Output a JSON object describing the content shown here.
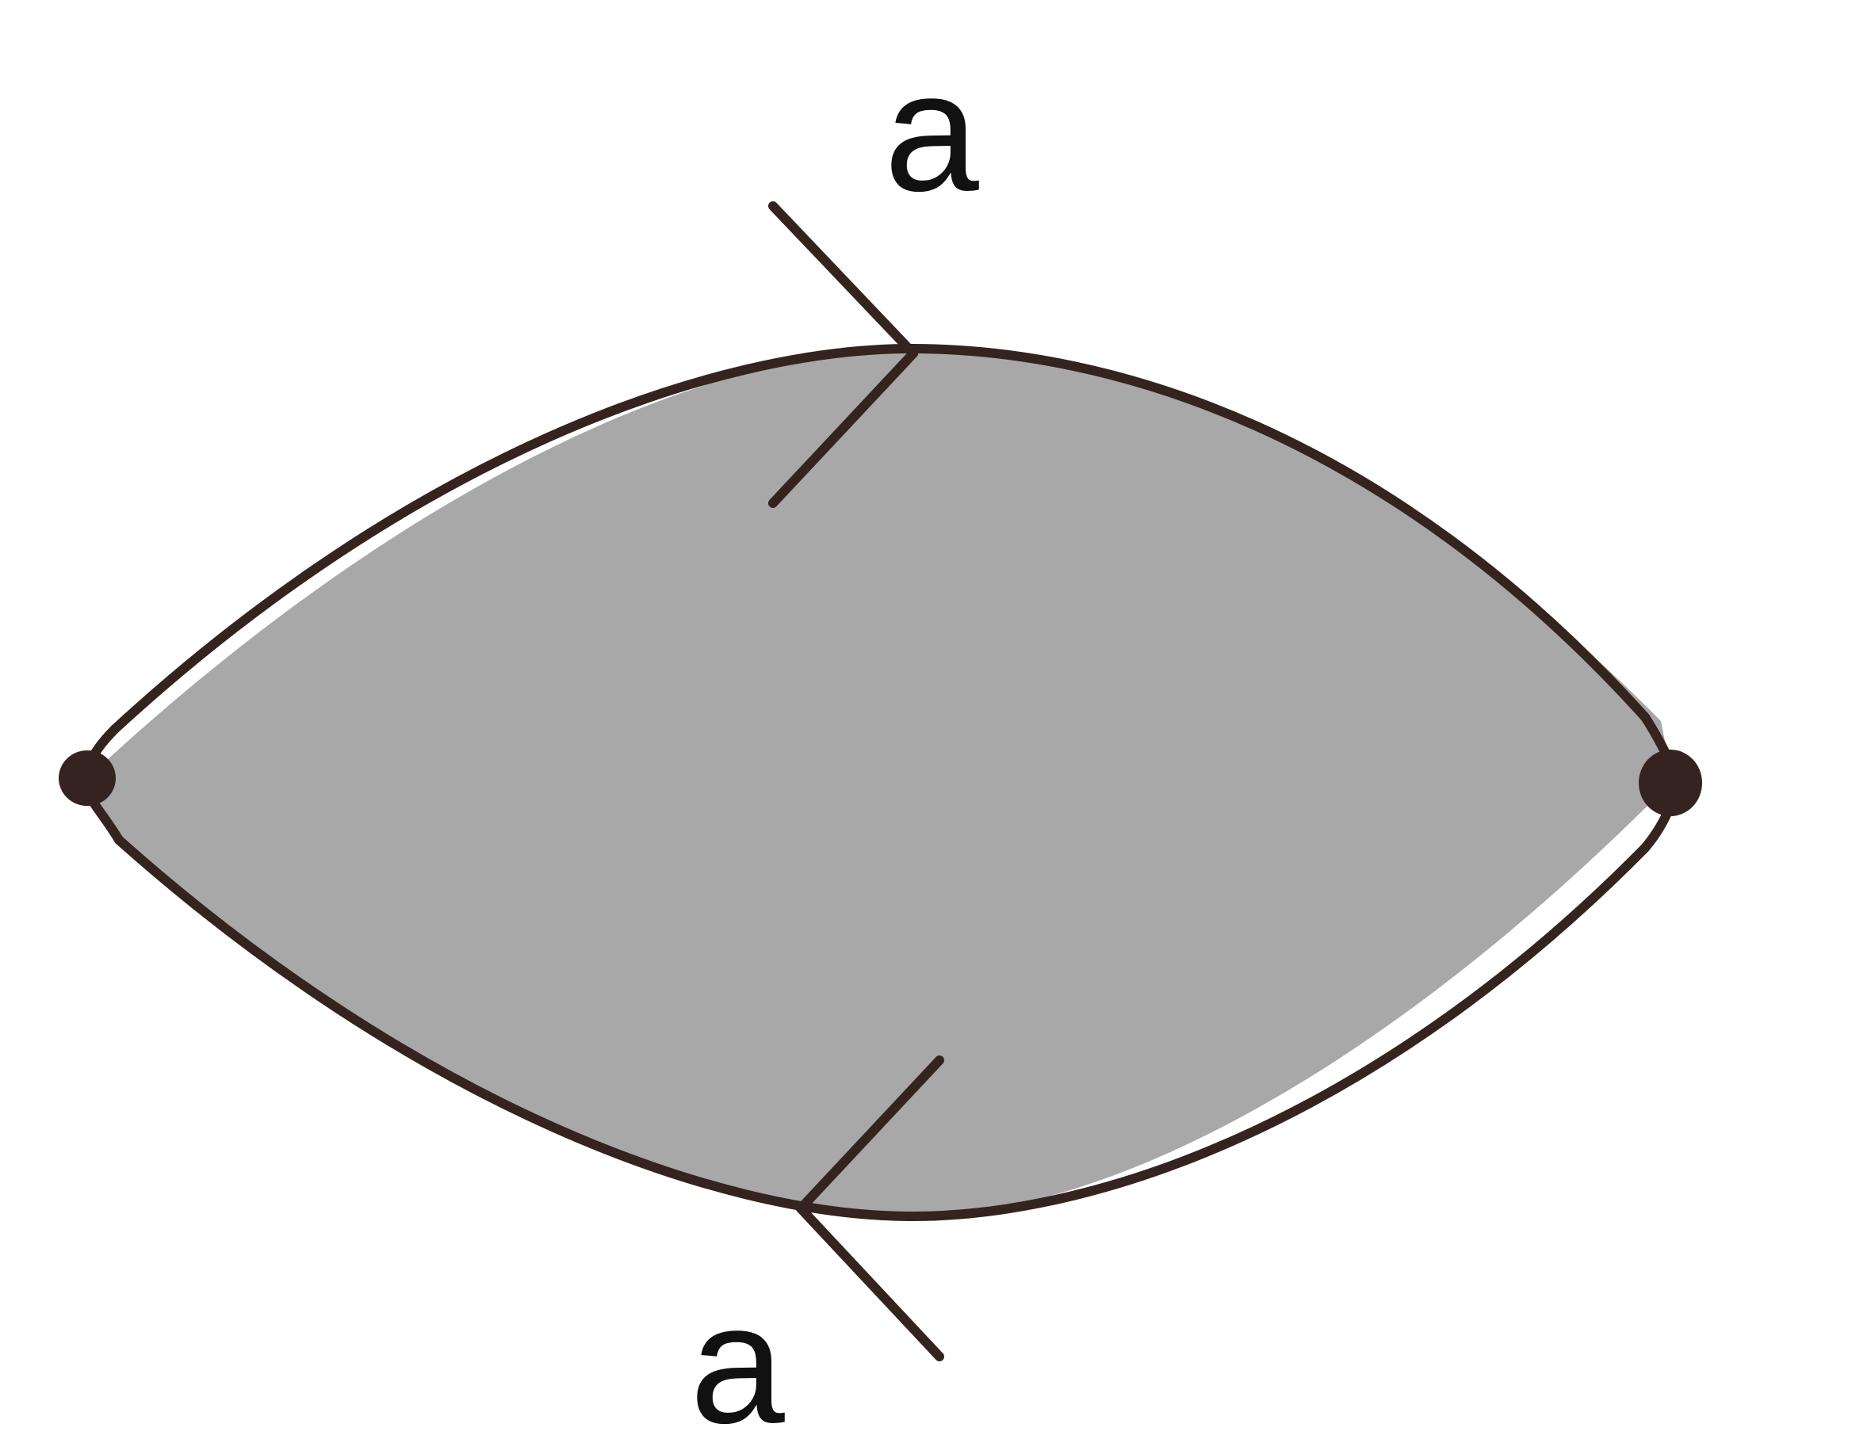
{
  "diagram": {
    "labels": {
      "top": "a",
      "bottom": "a"
    },
    "colors": {
      "region_fill": "#a8a8a8",
      "stroke": "#34231f",
      "vertex": "#34231f",
      "text": "#111111"
    }
  }
}
